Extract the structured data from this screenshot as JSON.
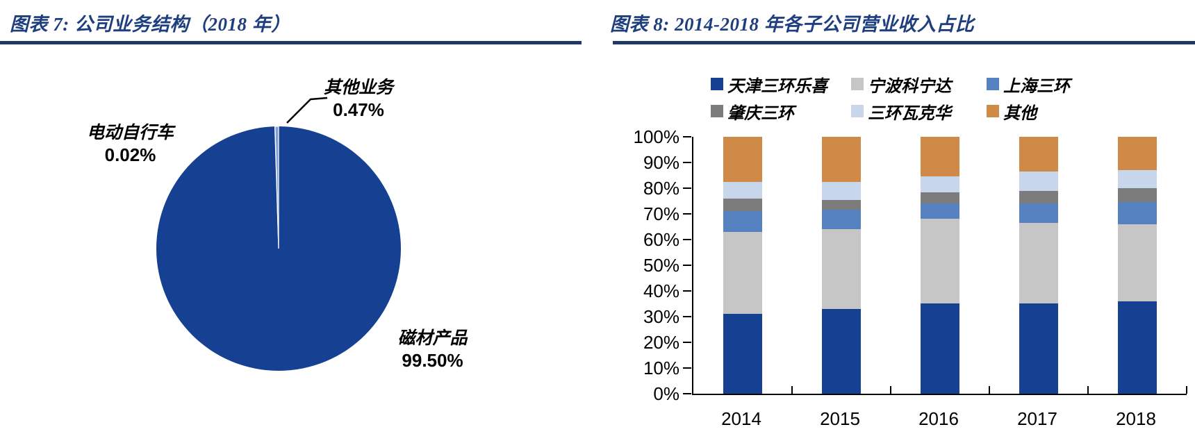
{
  "figure7": {
    "title": "图表 7:  公司业务结构（2018 年）"
  },
  "figure8": {
    "title": "图表 8:  2014-2018 年各子公司营业收入占比"
  },
  "chart_data": [
    {
      "type": "pie",
      "title": "公司业务结构（2018 年）",
      "slices": [
        {
          "label": "磁材产品",
          "value": 99.5,
          "pct_label": "99.50%",
          "color": "#164193"
        },
        {
          "label": "电动自行车",
          "value": 0.02,
          "pct_label": "0.02%",
          "color": "#FFFFFF"
        },
        {
          "label": "其他业务",
          "value": 0.47,
          "pct_label": "0.47%",
          "color": "#7FA0D2"
        }
      ],
      "legend_position": "none",
      "data_labels": "outside"
    },
    {
      "type": "bar",
      "stacked": true,
      "title": "2014-2018 年各子公司营业收入占比",
      "categories": [
        "2014",
        "2015",
        "2016",
        "2017",
        "2018"
      ],
      "series": [
        {
          "name": "天津三环乐喜",
          "color": "#164193",
          "values": [
            31,
            33,
            35,
            35,
            36
          ]
        },
        {
          "name": "宁波科宁达",
          "color": "#C6C6C6",
          "values": [
            32,
            31,
            33,
            31.5,
            30
          ]
        },
        {
          "name": "上海三环",
          "color": "#5581C0",
          "values": [
            8,
            7.5,
            6,
            7.5,
            8.5
          ]
        },
        {
          "name": "肇庆三环",
          "color": "#7C7C7C",
          "values": [
            5,
            4,
            4.5,
            5,
            5.5
          ]
        },
        {
          "name": "三环瓦克华",
          "color": "#C8D6EB",
          "values": [
            6.5,
            7,
            6,
            7.5,
            7
          ]
        },
        {
          "name": "其他",
          "color": "#CF8A47",
          "values": [
            17.5,
            17.5,
            15.5,
            13.5,
            13
          ]
        }
      ],
      "y_ticks": [
        "100%",
        "90%",
        "80%",
        "70%",
        "60%",
        "50%",
        "40%",
        "30%",
        "20%",
        "10%",
        "0%"
      ],
      "ylim": [
        0,
        100
      ],
      "grid": false,
      "legend_position": "top",
      "xlabel": "",
      "ylabel": ""
    }
  ]
}
